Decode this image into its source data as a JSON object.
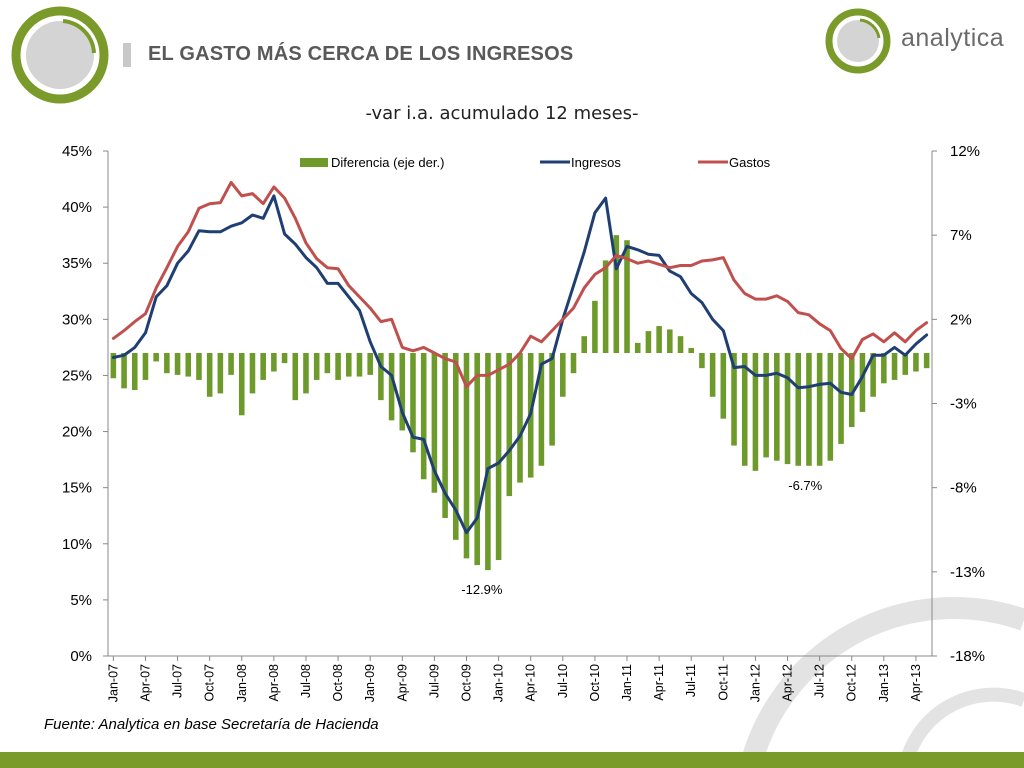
{
  "header": {
    "title": "EL GASTO MÁS CERCA DE LOS INGRESOS",
    "brand": "analytica"
  },
  "footer": {
    "source": "Fuente: Analytica en base Secretaría de Hacienda"
  },
  "colors": {
    "brand_green": "#7a9a2a",
    "ingresos": "#1f3f73",
    "gastos": "#c0504d",
    "diferencia": "#6d9a2b",
    "grey": "#d0d0d0"
  },
  "chart_data": {
    "type": "bar+line",
    "title": "-var i.a. acumulado 12 meses-",
    "x": [
      "Jan-07",
      "Feb-07",
      "Mar-07",
      "Apr-07",
      "May-07",
      "Jun-07",
      "Jul-07",
      "Aug-07",
      "Sep-07",
      "Oct-07",
      "Nov-07",
      "Dec-07",
      "Jan-08",
      "Feb-08",
      "Mar-08",
      "Apr-08",
      "May-08",
      "Jun-08",
      "Jul-08",
      "Aug-08",
      "Sep-08",
      "Oct-08",
      "Nov-08",
      "Dec-08",
      "Jan-09",
      "Feb-09",
      "Mar-09",
      "Apr-09",
      "May-09",
      "Jun-09",
      "Jul-09",
      "Aug-09",
      "Sep-09",
      "Oct-09",
      "Nov-09",
      "Dec-09",
      "Jan-10",
      "Feb-10",
      "Mar-10",
      "Apr-10",
      "May-10",
      "Jun-10",
      "Jul-10",
      "Aug-10",
      "Sep-10",
      "Oct-10",
      "Nov-10",
      "Dec-10",
      "Jan-11",
      "Feb-11",
      "Mar-11",
      "Apr-11",
      "May-11",
      "Jun-11",
      "Jul-11",
      "Aug-11",
      "Sep-11",
      "Oct-11",
      "Nov-11",
      "Dec-11",
      "Jan-12",
      "Feb-12",
      "Mar-12",
      "Apr-12",
      "May-12",
      "Jun-12",
      "Jul-12",
      "Aug-12",
      "Sep-12",
      "Oct-12",
      "Nov-12",
      "Dec-12",
      "Jan-13",
      "Feb-13",
      "Mar-13",
      "Apr-13",
      "May-13"
    ],
    "x_tick_labels": [
      "Jan-07",
      "Apr-07",
      "Jul-07",
      "Oct-07",
      "Jan-08",
      "Apr-08",
      "Jul-08",
      "Oct-08",
      "Jan-09",
      "Apr-09",
      "Jul-09",
      "Oct-09",
      "Jan-10",
      "Apr-10",
      "Jul-10",
      "Oct-10",
      "Jan-11",
      "Apr-11",
      "Jul-11",
      "Oct-11",
      "Jan-12",
      "Apr-12",
      "Jul-12",
      "Oct-12",
      "Jan-13",
      "Apr-13"
    ],
    "y_left": {
      "ticks": [
        "45%",
        "40%",
        "35%",
        "30%",
        "25%",
        "20%",
        "15%",
        "10%",
        "5%",
        "0%"
      ],
      "ylim": [
        0,
        45
      ]
    },
    "y_right": {
      "ticks": [
        "12%",
        "7%",
        "2%",
        "-3%",
        "-8%",
        "-13%",
        "-18%"
      ],
      "ylim": [
        -18,
        12
      ]
    },
    "series": [
      {
        "name": "Diferencia  (eje der.)",
        "kind": "bar",
        "axis": "right",
        "values": [
          -1.5,
          -2.1,
          -2.2,
          -1.6,
          -0.5,
          -1.2,
          -1.3,
          -1.4,
          -1.6,
          -2.6,
          -2.4,
          -1.3,
          -3.7,
          -2.4,
          -1.6,
          -1.1,
          -0.6,
          -2.8,
          -2.4,
          -1.6,
          -1.2,
          -1.6,
          -1.4,
          -1.4,
          -1.3,
          -2.8,
          -4.0,
          -4.6,
          -5.9,
          -7.5,
          -8.3,
          -9.8,
          -11.1,
          -12.2,
          -12.6,
          -12.9,
          -12.3,
          -8.5,
          -7.7,
          -7.4,
          -6.7,
          -5.5,
          -2.6,
          -1.2,
          1.0,
          3.1,
          5.5,
          7.0,
          6.7,
          0.6,
          1.3,
          1.6,
          1.4,
          1.0,
          0.3,
          -0.9,
          -2.6,
          -3.9,
          -5.5,
          -6.7,
          -7.0,
          -6.2,
          -6.4,
          -6.6,
          -6.7,
          -6.7,
          -6.7,
          -6.4,
          -5.4,
          -4.4,
          -3.5,
          -2.6,
          -1.8,
          -1.6,
          -1.3,
          -1.1,
          -0.9
        ]
      },
      {
        "name": "Ingresos",
        "kind": "line",
        "axis": "left",
        "values": [
          26.6,
          26.8,
          27.5,
          28.8,
          32.0,
          33.0,
          35.0,
          36.1,
          37.9,
          37.8,
          37.8,
          38.3,
          38.6,
          39.3,
          39.0,
          41.0,
          37.6,
          36.7,
          35.5,
          34.6,
          33.2,
          33.2,
          32.0,
          30.8,
          28.0,
          25.8,
          25.0,
          21.7,
          19.5,
          19.3,
          16.5,
          14.5,
          13.0,
          11.0,
          12.3,
          16.7,
          17.2,
          18.3,
          19.6,
          21.6,
          26.0,
          26.5,
          30.0,
          33.0,
          36.0,
          39.5,
          40.8,
          34.5,
          36.5,
          36.2,
          35.8,
          35.7,
          34.3,
          33.8,
          32.3,
          31.5,
          30.0,
          29.0,
          25.7,
          25.8,
          25.0,
          25.0,
          25.2,
          24.8,
          23.9,
          24.0,
          24.2,
          24.3,
          23.5,
          23.3,
          24.9,
          26.8,
          26.8,
          27.5,
          26.8,
          27.8,
          28.6
        ]
      },
      {
        "name": "Gastos",
        "kind": "line",
        "axis": "left",
        "values": [
          28.3,
          29.0,
          29.8,
          30.5,
          32.8,
          34.6,
          36.5,
          37.8,
          39.9,
          40.3,
          40.4,
          42.2,
          41.0,
          41.2,
          40.3,
          41.8,
          40.8,
          39.0,
          36.8,
          35.4,
          34.6,
          34.5,
          33.0,
          32.0,
          31.0,
          29.8,
          30.0,
          27.5,
          27.2,
          27.5,
          27.0,
          26.5,
          26.2,
          24.0,
          25.0,
          25.0,
          25.5,
          26.0,
          27.0,
          28.5,
          28.0,
          29.0,
          30.0,
          31.0,
          32.8,
          34.0,
          34.6,
          35.7,
          35.4,
          35.0,
          35.2,
          34.9,
          34.6,
          34.8,
          34.8,
          35.2,
          35.3,
          35.5,
          33.5,
          32.3,
          31.8,
          31.8,
          32.1,
          31.6,
          30.6,
          30.4,
          29.6,
          29.0,
          27.4,
          26.5,
          28.2,
          28.7,
          28.0,
          28.8,
          28.0,
          29.0,
          29.7
        ]
      }
    ],
    "annotations": [
      "-12.9%",
      "-6.7%"
    ],
    "legend": "top",
    "grid": false
  }
}
